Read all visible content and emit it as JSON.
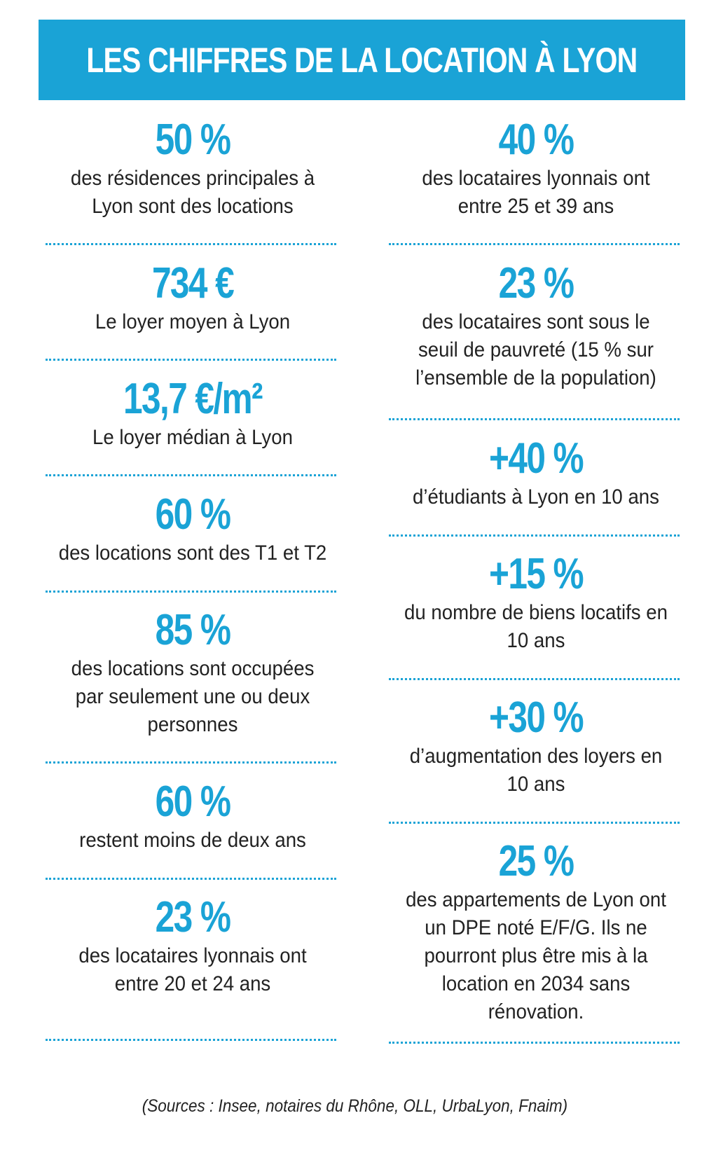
{
  "header": {
    "title": "LES CHIFFRES DE LA LOCATION À LYON"
  },
  "left": [
    {
      "value": "50 %",
      "label": "des résidences principales à Lyon sont des locations"
    },
    {
      "value": "734 €",
      "label": "Le loyer moyen à Lyon"
    },
    {
      "value": "13,7 €/m²",
      "label": "Le loyer médian à Lyon"
    },
    {
      "value": "60 %",
      "label": "des locations sont des T1 et T2"
    },
    {
      "value": "85 %",
      "label": "des locations sont occupées par seulement une ou deux personnes"
    },
    {
      "value": "60 %",
      "label": "restent moins de deux ans"
    },
    {
      "value": "23 %",
      "label": "des locataires lyonnais ont entre 20 et 24 ans"
    }
  ],
  "right": [
    {
      "value": "40 %",
      "label": "des locataires lyonnais ont entre 25 et 39 ans"
    },
    {
      "value": "23 %",
      "label": "des locataires sont sous le seuil de pauvreté (15 % sur l’ensemble de la population)"
    },
    {
      "value": "+40 %",
      "label": "d’étudiants à Lyon en 10 ans"
    },
    {
      "value": "+15 %",
      "label": "du nombre de biens locatifs en 10 ans"
    },
    {
      "value": "+30 %",
      "label": "d’augmentation des loyers en 10 ans"
    },
    {
      "value": "25 %",
      "label": "des appartements de Lyon ont un DPE noté E/F/G. Ils ne pourront plus être mis à la location en 2034 sans rénovation."
    }
  ],
  "footer": {
    "sources": "(Sources : Insee, notaires du Rhône, OLL, UrbaLyon, Fnaim)"
  },
  "colors": {
    "accent": "#1aa3d6",
    "text": "#222222",
    "background": "#ffffff"
  }
}
